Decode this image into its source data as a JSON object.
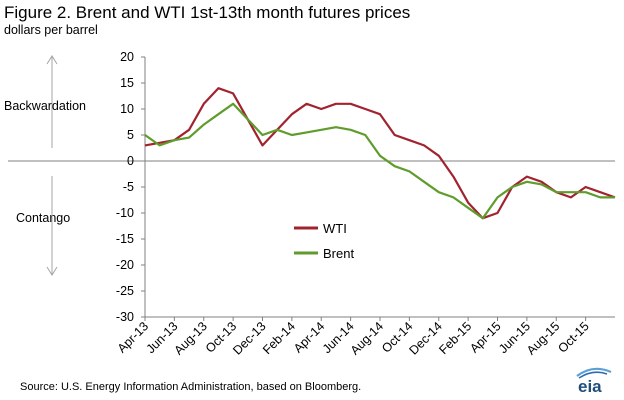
{
  "title": "Figure 2. Brent and WTI 1st-13th month futures prices",
  "subtitle": "dollars per barrel",
  "labels": {
    "backwardation": "Backwardation",
    "contango": "Contango"
  },
  "source": "Source: U.S. Energy Information  Administration, based on Bloomberg.",
  "logo_text": "eia",
  "colors": {
    "wti": "#a1232f",
    "brent": "#5f9c2b",
    "axis": "#808080",
    "arrow": "#a6a6a6"
  },
  "chart_data": {
    "type": "line",
    "ylim": [
      -30,
      20
    ],
    "yticks": [
      20,
      15,
      10,
      5,
      0,
      -5,
      -10,
      -15,
      -20,
      -25,
      -30
    ],
    "xticks": [
      "Apr-13",
      "Jun-13",
      "Aug-13",
      "Oct-13",
      "Dec-13",
      "Feb-14",
      "Apr-14",
      "Jun-14",
      "Aug-14",
      "Oct-14",
      "Dec-14",
      "Feb-15",
      "Apr-15",
      "Jun-15",
      "Aug-15",
      "Oct-15"
    ],
    "x": [
      "Apr-13",
      "May-13",
      "Jun-13",
      "Jul-13",
      "Aug-13",
      "Sep-13",
      "Oct-13",
      "Nov-13",
      "Dec-13",
      "Jan-14",
      "Feb-14",
      "Mar-14",
      "Apr-14",
      "May-14",
      "Jun-14",
      "Jul-14",
      "Aug-14",
      "Sep-14",
      "Oct-14",
      "Nov-14",
      "Dec-14",
      "Jan-15",
      "Feb-15",
      "Mar-15",
      "Apr-15",
      "May-15",
      "Jun-15",
      "Jul-15",
      "Aug-15",
      "Sep-15",
      "Oct-15",
      "Nov-15",
      "Dec-15"
    ],
    "series": [
      {
        "name": "WTI",
        "values": [
          3,
          3.5,
          4,
          6,
          11,
          14,
          13,
          8,
          3,
          6,
          9,
          11,
          10,
          11,
          11,
          10,
          9,
          5,
          4,
          3,
          1,
          -3,
          -8,
          -11,
          -10,
          -5,
          -3,
          -4,
          -6,
          -7,
          -5,
          -6,
          -7
        ]
      },
      {
        "name": "Brent",
        "values": [
          5,
          3,
          4,
          4.5,
          7,
          9,
          11,
          8,
          5,
          6,
          5,
          5.5,
          6,
          6.5,
          6,
          5,
          1,
          -1,
          -2,
          -4,
          -6,
          -7,
          -9,
          -11,
          -7,
          -5,
          -4,
          -4.5,
          -6,
          -6,
          -6,
          -7,
          -7
        ]
      }
    ],
    "legend": {
      "placement": "center-left"
    },
    "grid": false
  }
}
